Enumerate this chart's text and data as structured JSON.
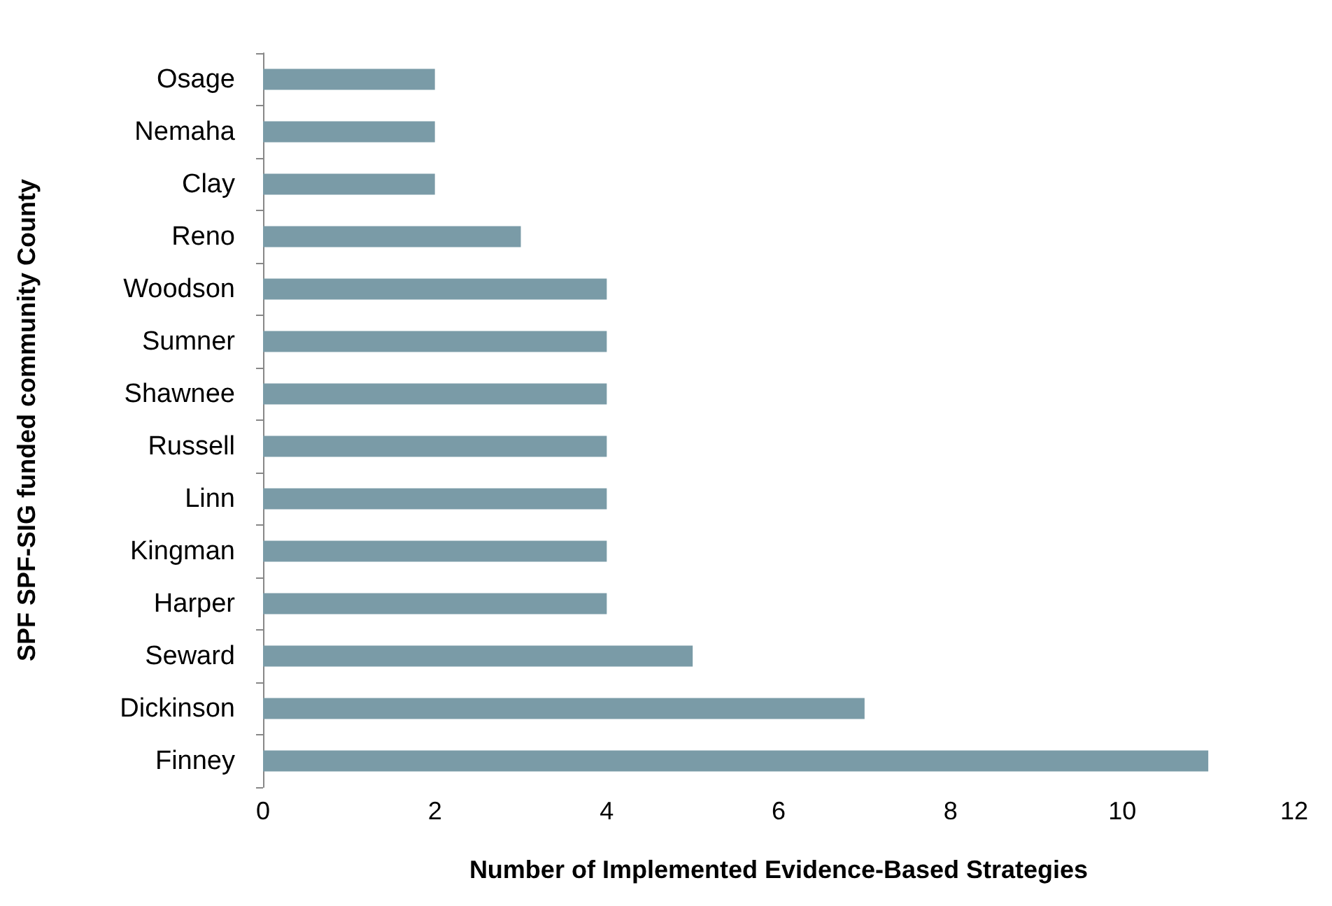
{
  "chart_data": {
    "type": "bar",
    "orientation": "horizontal",
    "xlabel": "Number of Implemented Evidence-Based Strategies",
    "ylabel": "SPF SPF-SIG funded community County",
    "categories": [
      "Osage",
      "Nemaha",
      "Clay",
      "Reno",
      "Woodson",
      "Sumner",
      "Shawnee",
      "Russell",
      "Linn",
      "Kingman",
      "Harper",
      "Seward",
      "Dickinson",
      "Finney"
    ],
    "values": [
      2,
      2,
      2,
      3,
      4,
      4,
      4,
      4,
      4,
      4,
      4,
      5,
      7,
      11
    ],
    "color": "#7a9ba7",
    "xlim": [
      0,
      12
    ],
    "xticks": [
      0,
      2,
      4,
      6,
      8,
      10,
      12
    ],
    "grid": false
  }
}
